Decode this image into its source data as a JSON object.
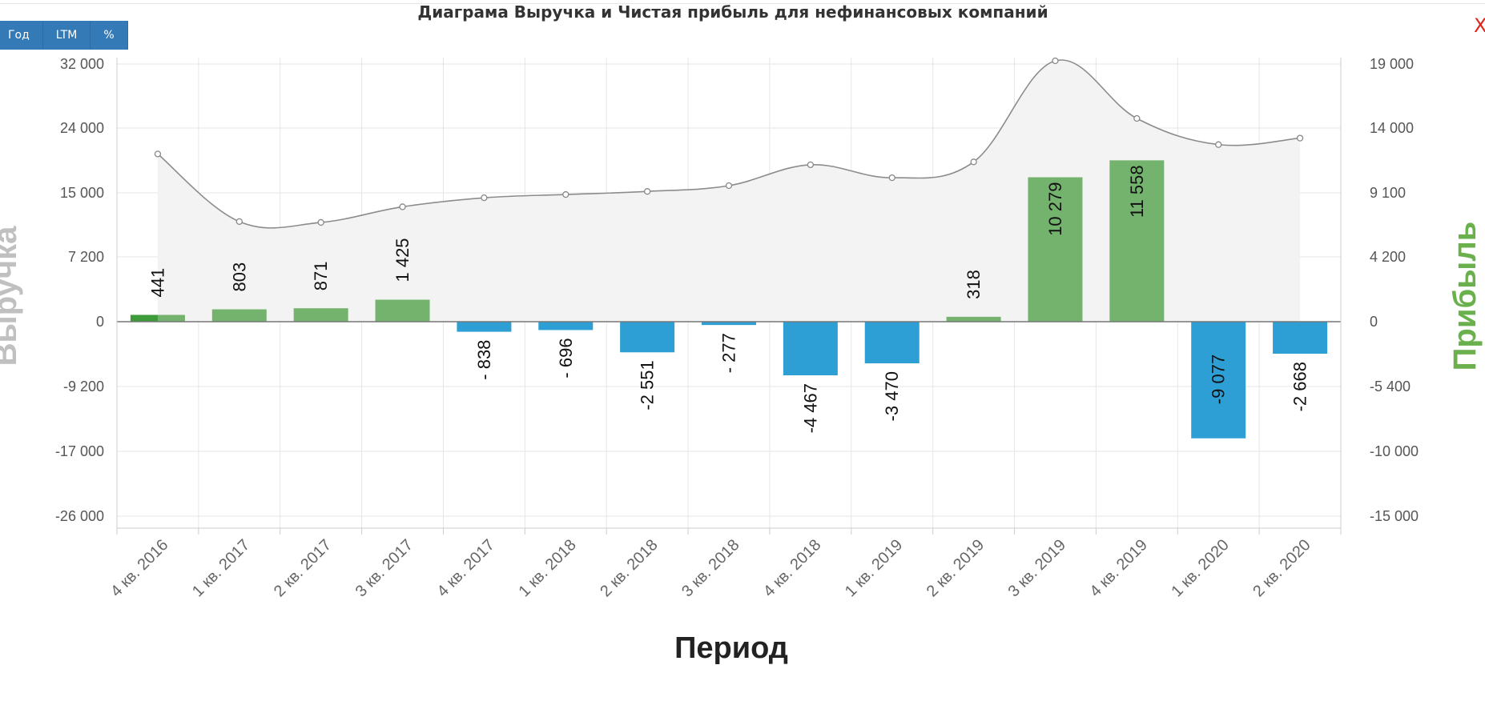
{
  "title": "Диаграма Выручка и Чистая прибыль для нефинансовых компаний",
  "buttons": [
    {
      "label": "Год"
    },
    {
      "label": "LTM"
    },
    {
      "label": "%"
    }
  ],
  "close_label": "X",
  "colors": {
    "positive": "#74b36e",
    "positive_first": "#3e9b3a",
    "negative": "#2e9fd4",
    "line": "#8c8c8c",
    "area": "#f3f3f3",
    "left_axis_title": "#c0c0c0",
    "right_axis_title": "#6ab04c"
  },
  "chart_data": {
    "type": "bar+line",
    "title": "Диаграма Выручка и Чистая прибыль для нефинансовых компаний",
    "xlabel": "Период",
    "ylabel_left": "Выручка",
    "ylabel_right": "Прибыль",
    "categories": [
      "4 кв. 2016",
      "1 кв. 2017",
      "2 кв. 2017",
      "3 кв. 2017",
      "4 кв. 2017",
      "1 кв. 2018",
      "2 кв. 2018",
      "3 кв. 2018",
      "4 кв. 2018",
      "1 кв. 2019",
      "2 кв. 2019",
      "3 кв. 2019",
      "4 кв. 2019",
      "1 кв. 2020",
      "2 кв. 2020"
    ],
    "left_ticks": [
      32000,
      24000,
      15000,
      7200,
      0,
      -9200,
      -17000,
      -26000
    ],
    "left_tick_labels": [
      "32 000",
      "24 000",
      "15 000",
      "7 200",
      "0",
      "-9 200",
      "-17 000",
      "-26 000"
    ],
    "right_ticks": [
      19000,
      14000,
      9100,
      4200,
      0,
      -5400,
      -10000,
      -15000
    ],
    "right_tick_labels": [
      "19 000",
      "14 000",
      "9 100",
      "4 200",
      "0",
      "-5 400",
      "-10 000",
      "-15 000"
    ],
    "series": [
      {
        "name": "Выручка",
        "type": "area-line",
        "axis": "left",
        "values": [
          20400,
          11500,
          11400,
          13300,
          14400,
          14800,
          15200,
          16000,
          18900,
          17100,
          19300,
          32400,
          25200,
          21700,
          22600
        ]
      },
      {
        "name": "Прибыль",
        "type": "bar",
        "axis": "right",
        "values": [
          441,
          803,
          871,
          1425,
          -838,
          -696,
          -2551,
          -277,
          -4467,
          -3470,
          318,
          10279,
          11558,
          -9077,
          -2668
        ],
        "labels": [
          "441",
          "803",
          "871",
          "1 425",
          "- 838",
          "- 696",
          "-2 551",
          "- 277",
          "-4 467",
          "-3 470",
          "318",
          "10 279",
          "11 558",
          "-9 077",
          "-2 668"
        ]
      }
    ],
    "grid": true,
    "legend": "none"
  }
}
